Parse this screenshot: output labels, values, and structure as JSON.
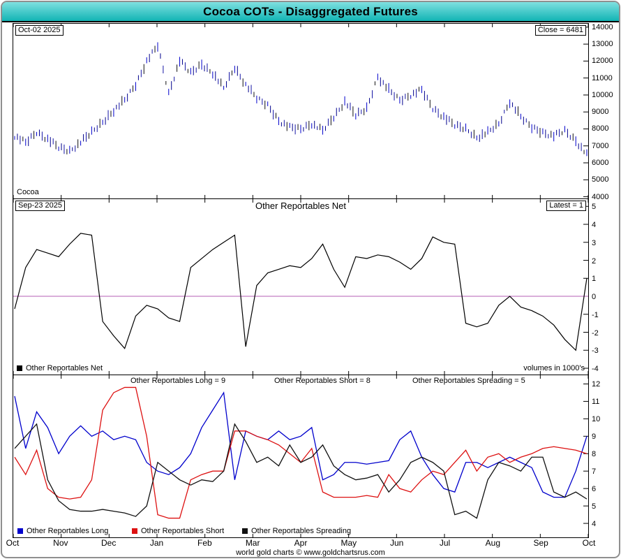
{
  "window": {
    "title_bar": "Cocoa COTs - Disaggregated Futures"
  },
  "footer": {
    "credit": "world gold charts © www.goldchartsrus.com"
  },
  "colors": {
    "title_bar_teal": "#18b6b6",
    "price_bars_navy": "#00008b",
    "net_line": "#000000",
    "zero_line_purple": "#b45cb4",
    "long_blue": "#0000cc",
    "short_red": "#dd1111",
    "spreading_black": "#111111"
  },
  "price_panel": {
    "date_label": "Oct-02 2025",
    "close_label": "Close = 6481",
    "instrument_label": "Cocoa"
  },
  "net_panel": {
    "date_label": "Sep-23 2025",
    "latest_label": "Latest = 1",
    "title": "Other Reportables Net",
    "legend_label": "Other Reportables Net",
    "volumes_note": "volumes in 1000's"
  },
  "volume_panel": {
    "long_header": "Other Reportables Long = 9",
    "short_header": "Other Reportables Short = 8",
    "spreading_header": "Other Reportables Spreading = 5",
    "legend": [
      {
        "label": "Other Reportables Long"
      },
      {
        "label": "Other Reportables Short"
      },
      {
        "label": "Other Reportables Spreading"
      }
    ]
  },
  "x_axis": {
    "months": [
      "Oct",
      "Nov",
      "Dec",
      "Jan",
      "Feb",
      "Mar",
      "Apr",
      "May",
      "Jun",
      "Jul",
      "Aug",
      "Sep",
      "Oct"
    ]
  },
  "chart_data": [
    {
      "type": "bar",
      "subtype": "ohlc-hilo-bars",
      "title": "Cocoa price",
      "x_start": "Oct 2024",
      "x_end": "Oct 2025",
      "ylim": [
        4000,
        14000
      ],
      "y_ticks": [
        14000,
        13000,
        12000,
        11000,
        10000,
        9000,
        8000,
        7000,
        6000,
        5000,
        4000
      ],
      "latest_close": 6481,
      "weekly_closes": [
        7600,
        7200,
        7800,
        7400,
        6900,
        6700,
        7200,
        7800,
        8400,
        9100,
        9700,
        10600,
        12000,
        12900,
        10100,
        12000,
        11300,
        11800,
        11300,
        10400,
        11600,
        10600,
        9800,
        9400,
        8500,
        8100,
        8000,
        8300,
        7900,
        8700,
        9600,
        8800,
        9200,
        11100,
        10300,
        9700,
        10000,
        10300,
        9200,
        8700,
        8200,
        8000,
        7500,
        7800,
        8300,
        9600,
        8700,
        8100,
        7800,
        7600,
        7900,
        7300,
        6481
      ]
    },
    {
      "type": "line",
      "title": "Other Reportables Net",
      "unit": "volumes in 1000's",
      "ylim": [
        -4,
        5
      ],
      "y_ticks": [
        5,
        4,
        3,
        2,
        1,
        0,
        -1,
        -2,
        -3,
        -4
      ],
      "latest": 1,
      "values": [
        -0.7,
        1.6,
        2.6,
        2.4,
        2.2,
        2.9,
        3.5,
        3.4,
        -1.4,
        -2.2,
        -2.9,
        -1.1,
        -0.5,
        -0.7,
        -1.2,
        -1.4,
        1.6,
        2.1,
        2.6,
        3.0,
        3.4,
        -2.8,
        0.6,
        1.3,
        1.5,
        1.7,
        1.6,
        2.1,
        2.9,
        1.5,
        0.5,
        2.2,
        2.1,
        2.3,
        2.2,
        1.9,
        1.5,
        2.1,
        3.3,
        3.0,
        2.9,
        -1.5,
        -1.7,
        -1.5,
        -0.5,
        0.0,
        -0.6,
        -0.8,
        -1.1,
        -1.6,
        -2.4,
        -3.0,
        1.0
      ]
    },
    {
      "type": "line",
      "title": "Other Reportables Long / Short / Spreading",
      "unit": "volumes in 1000's",
      "ylim": [
        4,
        12
      ],
      "y_ticks": [
        12,
        11,
        10,
        9,
        8,
        7,
        6,
        5,
        4
      ],
      "series": [
        {
          "name": "Other Reportables Long",
          "color": "#0000cc",
          "latest": 9,
          "values": [
            11.3,
            8.3,
            10.4,
            9.5,
            8.0,
            9.0,
            9.6,
            9.0,
            9.3,
            8.8,
            9.0,
            8.8,
            7.5,
            7.0,
            6.8,
            7.2,
            8.0,
            9.5,
            10.5,
            11.5,
            6.5,
            9.3,
            9.0,
            8.8,
            9.3,
            8.8,
            9.0,
            9.5,
            6.5,
            6.8,
            7.5,
            7.5,
            7.4,
            7.5,
            7.6,
            8.8,
            9.3,
            7.8,
            6.8,
            6.0,
            5.8,
            7.5,
            7.5,
            7.2,
            7.5,
            7.8,
            7.5,
            7.2,
            5.8,
            5.5,
            5.5,
            7.0,
            9.0
          ]
        },
        {
          "name": "Other Reportables Short",
          "color": "#dd1111",
          "latest": 8,
          "values": [
            7.8,
            6.8,
            8.2,
            6.0,
            5.5,
            5.4,
            5.5,
            6.5,
            10.5,
            11.5,
            11.8,
            11.8,
            9.0,
            4.5,
            4.3,
            4.3,
            6.5,
            6.8,
            7.0,
            7.0,
            9.3,
            9.3,
            9.0,
            8.8,
            8.5,
            8.0,
            7.5,
            8.3,
            5.8,
            5.5,
            5.5,
            5.5,
            5.6,
            5.5,
            6.8,
            6.0,
            5.8,
            6.5,
            7.0,
            6.8,
            7.5,
            8.2,
            7.0,
            7.8,
            8.0,
            7.5,
            7.8,
            8.0,
            8.3,
            8.4,
            8.3,
            8.2,
            8.0
          ]
        },
        {
          "name": "Other Reportables Spreading",
          "color": "#111111",
          "latest": 5,
          "values": [
            8.3,
            9.0,
            9.7,
            6.5,
            5.3,
            4.8,
            4.7,
            4.7,
            4.8,
            4.7,
            4.6,
            4.4,
            5.0,
            7.5,
            7.0,
            6.5,
            6.2,
            6.5,
            6.4,
            7.0,
            9.7,
            8.7,
            7.5,
            7.8,
            7.3,
            8.5,
            7.5,
            7.8,
            8.5,
            7.3,
            6.8,
            6.5,
            6.6,
            6.8,
            5.8,
            6.5,
            7.5,
            7.8,
            7.5,
            7.0,
            4.5,
            4.7,
            4.3,
            6.5,
            7.5,
            7.3,
            7.0,
            7.8,
            7.8,
            5.8,
            5.5,
            5.8,
            5.4
          ]
        }
      ]
    }
  ]
}
